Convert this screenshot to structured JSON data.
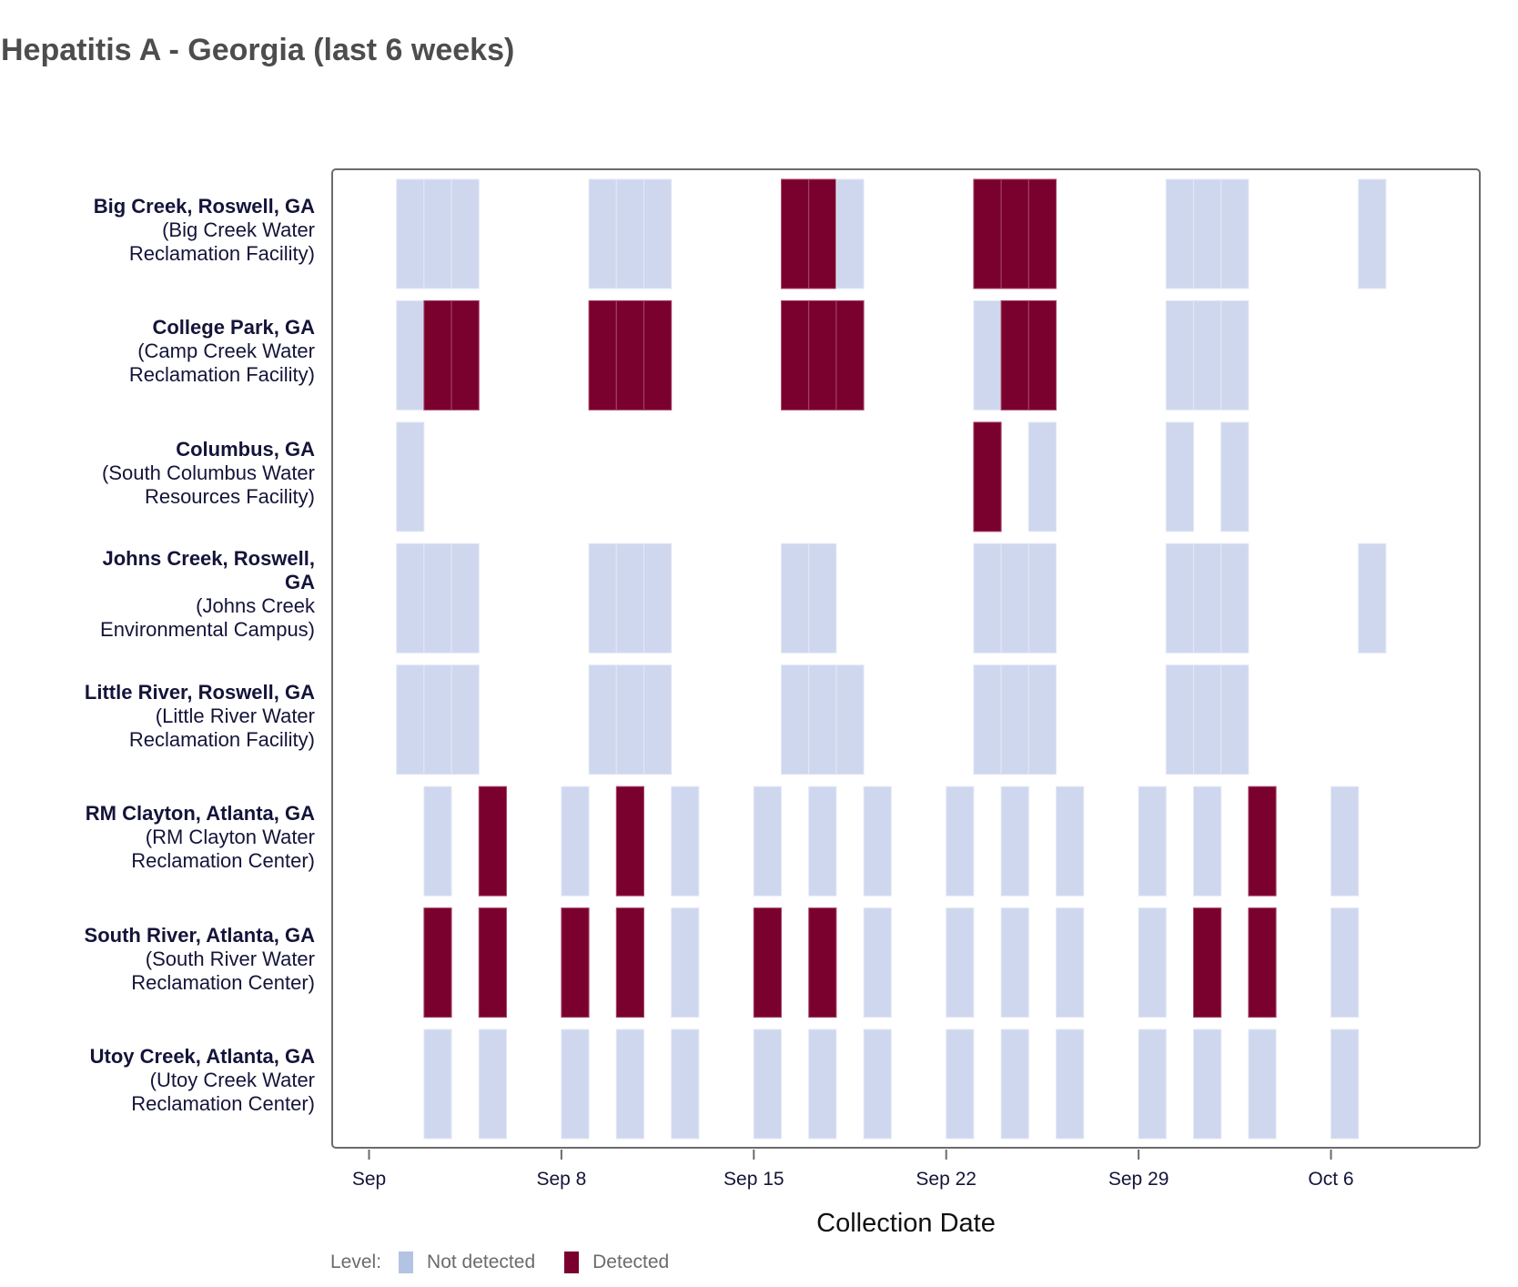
{
  "title": "Hepatitis A - Georgia (last 6 weeks)",
  "chart_data": {
    "type": "heatmap",
    "title": "Hepatitis A - Georgia (last 6 weeks)",
    "xlabel": "Collection Date",
    "ylabel": "",
    "x_start": "2024-09-01",
    "x_range": [
      "Sep 1",
      "Oct 10"
    ],
    "x_ticks": [
      {
        "day": 0,
        "label": "Sep"
      },
      {
        "day": 7,
        "label": "Sep 8"
      },
      {
        "day": 14,
        "label": "Sep 15"
      },
      {
        "day": 21,
        "label": "Sep 22"
      },
      {
        "day": 28,
        "label": "Sep 29"
      },
      {
        "day": 35,
        "label": "Oct 6"
      }
    ],
    "legend": {
      "title": "Level:",
      "position": "bottom-left",
      "items": [
        {
          "label": "Not detected",
          "color": "#b3c3e3",
          "fill": "#cfd7ee"
        },
        {
          "label": "Detected",
          "color": "#7a002e",
          "fill": "#7a002e"
        }
      ]
    },
    "sites": [
      {
        "name": "Big Creek, Roswell, GA",
        "facility_lines": [
          "(Big Creek Water",
          "Reclamation Facility)"
        ],
        "samples": [
          {
            "date": "Sep 2",
            "day": 1,
            "level": "Not detected"
          },
          {
            "date": "Sep 3",
            "day": 2,
            "level": "Not detected"
          },
          {
            "date": "Sep 4",
            "day": 3,
            "level": "Not detected"
          },
          {
            "date": "Sep 9",
            "day": 8,
            "level": "Not detected"
          },
          {
            "date": "Sep 10",
            "day": 9,
            "level": "Not detected"
          },
          {
            "date": "Sep 11",
            "day": 10,
            "level": "Not detected"
          },
          {
            "date": "Sep 16",
            "day": 15,
            "level": "Detected"
          },
          {
            "date": "Sep 17",
            "day": 16,
            "level": "Detected"
          },
          {
            "date": "Sep 18",
            "day": 17,
            "level": "Not detected"
          },
          {
            "date": "Sep 23",
            "day": 22,
            "level": "Detected"
          },
          {
            "date": "Sep 24",
            "day": 23,
            "level": "Detected"
          },
          {
            "date": "Sep 25",
            "day": 24,
            "level": "Detected"
          },
          {
            "date": "Sep 30",
            "day": 29,
            "level": "Not detected"
          },
          {
            "date": "Oct 1",
            "day": 30,
            "level": "Not detected"
          },
          {
            "date": "Oct 2",
            "day": 31,
            "level": "Not detected"
          },
          {
            "date": "Oct 7",
            "day": 36,
            "level": "Not detected"
          }
        ]
      },
      {
        "name": "College Park, GA",
        "facility_lines": [
          "(Camp Creek Water",
          "Reclamation Facility)"
        ],
        "samples": [
          {
            "date": "Sep 2",
            "day": 1,
            "level": "Not detected"
          },
          {
            "date": "Sep 3",
            "day": 2,
            "level": "Detected"
          },
          {
            "date": "Sep 4",
            "day": 3,
            "level": "Detected"
          },
          {
            "date": "Sep 9",
            "day": 8,
            "level": "Detected"
          },
          {
            "date": "Sep 10",
            "day": 9,
            "level": "Detected"
          },
          {
            "date": "Sep 11",
            "day": 10,
            "level": "Detected"
          },
          {
            "date": "Sep 16",
            "day": 15,
            "level": "Detected"
          },
          {
            "date": "Sep 17",
            "day": 16,
            "level": "Detected"
          },
          {
            "date": "Sep 18",
            "day": 17,
            "level": "Detected"
          },
          {
            "date": "Sep 23",
            "day": 22,
            "level": "Not detected"
          },
          {
            "date": "Sep 24",
            "day": 23,
            "level": "Detected"
          },
          {
            "date": "Sep 25",
            "day": 24,
            "level": "Detected"
          },
          {
            "date": "Sep 30",
            "day": 29,
            "level": "Not detected"
          },
          {
            "date": "Oct 1",
            "day": 30,
            "level": "Not detected"
          },
          {
            "date": "Oct 2",
            "day": 31,
            "level": "Not detected"
          }
        ]
      },
      {
        "name": "Columbus, GA",
        "facility_lines": [
          "(South Columbus Water",
          "Resources Facility)"
        ],
        "samples": [
          {
            "date": "Sep 2",
            "day": 1,
            "level": "Not detected"
          },
          {
            "date": "Sep 23",
            "day": 22,
            "level": "Detected"
          },
          {
            "date": "Sep 25",
            "day": 24,
            "level": "Not detected"
          },
          {
            "date": "Sep 30",
            "day": 29,
            "level": "Not detected"
          },
          {
            "date": "Oct 2",
            "day": 31,
            "level": "Not detected"
          }
        ]
      },
      {
        "name": "Johns Creek, Roswell, GA",
        "name_lines": [
          "Johns Creek, Roswell,",
          "GA"
        ],
        "facility_lines": [
          "(Johns Creek",
          "Environmental Campus)"
        ],
        "samples": [
          {
            "date": "Sep 2",
            "day": 1,
            "level": "Not detected"
          },
          {
            "date": "Sep 3",
            "day": 2,
            "level": "Not detected"
          },
          {
            "date": "Sep 4",
            "day": 3,
            "level": "Not detected"
          },
          {
            "date": "Sep 9",
            "day": 8,
            "level": "Not detected"
          },
          {
            "date": "Sep 10",
            "day": 9,
            "level": "Not detected"
          },
          {
            "date": "Sep 11",
            "day": 10,
            "level": "Not detected"
          },
          {
            "date": "Sep 16",
            "day": 15,
            "level": "Not detected"
          },
          {
            "date": "Sep 17",
            "day": 16,
            "level": "Not detected"
          },
          {
            "date": "Sep 23",
            "day": 22,
            "level": "Not detected"
          },
          {
            "date": "Sep 24",
            "day": 23,
            "level": "Not detected"
          },
          {
            "date": "Sep 25",
            "day": 24,
            "level": "Not detected"
          },
          {
            "date": "Sep 30",
            "day": 29,
            "level": "Not detected"
          },
          {
            "date": "Oct 1",
            "day": 30,
            "level": "Not detected"
          },
          {
            "date": "Oct 2",
            "day": 31,
            "level": "Not detected"
          },
          {
            "date": "Oct 7",
            "day": 36,
            "level": "Not detected"
          }
        ]
      },
      {
        "name": "Little River, Roswell, GA",
        "facility_lines": [
          "(Little River Water",
          "Reclamation Facility)"
        ],
        "samples": [
          {
            "date": "Sep 2",
            "day": 1,
            "level": "Not detected"
          },
          {
            "date": "Sep 3",
            "day": 2,
            "level": "Not detected"
          },
          {
            "date": "Sep 4",
            "day": 3,
            "level": "Not detected"
          },
          {
            "date": "Sep 9",
            "day": 8,
            "level": "Not detected"
          },
          {
            "date": "Sep 10",
            "day": 9,
            "level": "Not detected"
          },
          {
            "date": "Sep 11",
            "day": 10,
            "level": "Not detected"
          },
          {
            "date": "Sep 16",
            "day": 15,
            "level": "Not detected"
          },
          {
            "date": "Sep 17",
            "day": 16,
            "level": "Not detected"
          },
          {
            "date": "Sep 18",
            "day": 17,
            "level": "Not detected"
          },
          {
            "date": "Sep 23",
            "day": 22,
            "level": "Not detected"
          },
          {
            "date": "Sep 24",
            "day": 23,
            "level": "Not detected"
          },
          {
            "date": "Sep 25",
            "day": 24,
            "level": "Not detected"
          },
          {
            "date": "Sep 30",
            "day": 29,
            "level": "Not detected"
          },
          {
            "date": "Oct 1",
            "day": 30,
            "level": "Not detected"
          },
          {
            "date": "Oct 2",
            "day": 31,
            "level": "Not detected"
          }
        ]
      },
      {
        "name": "RM Clayton, Atlanta, GA",
        "facility_lines": [
          "(RM Clayton Water",
          "Reclamation Center)"
        ],
        "samples": [
          {
            "date": "Sep 3",
            "day": 2,
            "level": "Not detected"
          },
          {
            "date": "Sep 5",
            "day": 4,
            "level": "Detected"
          },
          {
            "date": "Sep 8",
            "day": 7,
            "level": "Not detected"
          },
          {
            "date": "Sep 10",
            "day": 9,
            "level": "Detected"
          },
          {
            "date": "Sep 12",
            "day": 11,
            "level": "Not detected"
          },
          {
            "date": "Sep 15",
            "day": 14,
            "level": "Not detected"
          },
          {
            "date": "Sep 17",
            "day": 16,
            "level": "Not detected"
          },
          {
            "date": "Sep 19",
            "day": 18,
            "level": "Not detected"
          },
          {
            "date": "Sep 22",
            "day": 21,
            "level": "Not detected"
          },
          {
            "date": "Sep 24",
            "day": 23,
            "level": "Not detected"
          },
          {
            "date": "Sep 26",
            "day": 25,
            "level": "Not detected"
          },
          {
            "date": "Sep 29",
            "day": 28,
            "level": "Not detected"
          },
          {
            "date": "Oct 1",
            "day": 30,
            "level": "Not detected"
          },
          {
            "date": "Oct 3",
            "day": 32,
            "level": "Detected"
          },
          {
            "date": "Oct 6",
            "day": 35,
            "level": "Not detected"
          }
        ]
      },
      {
        "name": "South River, Atlanta, GA",
        "facility_lines": [
          "(South River Water",
          "Reclamation Center)"
        ],
        "samples": [
          {
            "date": "Sep 3",
            "day": 2,
            "level": "Detected"
          },
          {
            "date": "Sep 5",
            "day": 4,
            "level": "Detected"
          },
          {
            "date": "Sep 8",
            "day": 7,
            "level": "Detected"
          },
          {
            "date": "Sep 10",
            "day": 9,
            "level": "Detected"
          },
          {
            "date": "Sep 12",
            "day": 11,
            "level": "Not detected"
          },
          {
            "date": "Sep 15",
            "day": 14,
            "level": "Detected"
          },
          {
            "date": "Sep 17",
            "day": 16,
            "level": "Detected"
          },
          {
            "date": "Sep 19",
            "day": 18,
            "level": "Not detected"
          },
          {
            "date": "Sep 22",
            "day": 21,
            "level": "Not detected"
          },
          {
            "date": "Sep 24",
            "day": 23,
            "level": "Not detected"
          },
          {
            "date": "Sep 26",
            "day": 25,
            "level": "Not detected"
          },
          {
            "date": "Sep 29",
            "day": 28,
            "level": "Not detected"
          },
          {
            "date": "Oct 1",
            "day": 30,
            "level": "Detected"
          },
          {
            "date": "Oct 3",
            "day": 32,
            "level": "Detected"
          },
          {
            "date": "Oct 6",
            "day": 35,
            "level": "Not detected"
          }
        ]
      },
      {
        "name": "Utoy Creek, Atlanta, GA",
        "facility_lines": [
          "(Utoy Creek Water",
          "Reclamation Center)"
        ],
        "samples": [
          {
            "date": "Sep 3",
            "day": 2,
            "level": "Not detected"
          },
          {
            "date": "Sep 5",
            "day": 4,
            "level": "Not detected"
          },
          {
            "date": "Sep 8",
            "day": 7,
            "level": "Not detected"
          },
          {
            "date": "Sep 10",
            "day": 9,
            "level": "Not detected"
          },
          {
            "date": "Sep 12",
            "day": 11,
            "level": "Not detected"
          },
          {
            "date": "Sep 15",
            "day": 14,
            "level": "Not detected"
          },
          {
            "date": "Sep 17",
            "day": 16,
            "level": "Not detected"
          },
          {
            "date": "Sep 19",
            "day": 18,
            "level": "Not detected"
          },
          {
            "date": "Sep 22",
            "day": 21,
            "level": "Not detected"
          },
          {
            "date": "Sep 24",
            "day": 23,
            "level": "Not detected"
          },
          {
            "date": "Sep 26",
            "day": 25,
            "level": "Not detected"
          },
          {
            "date": "Sep 29",
            "day": 28,
            "level": "Not detected"
          },
          {
            "date": "Oct 1",
            "day": 30,
            "level": "Not detected"
          },
          {
            "date": "Oct 3",
            "day": 32,
            "level": "Not detected"
          },
          {
            "date": "Oct 6",
            "day": 35,
            "level": "Not detected"
          }
        ]
      }
    ]
  }
}
